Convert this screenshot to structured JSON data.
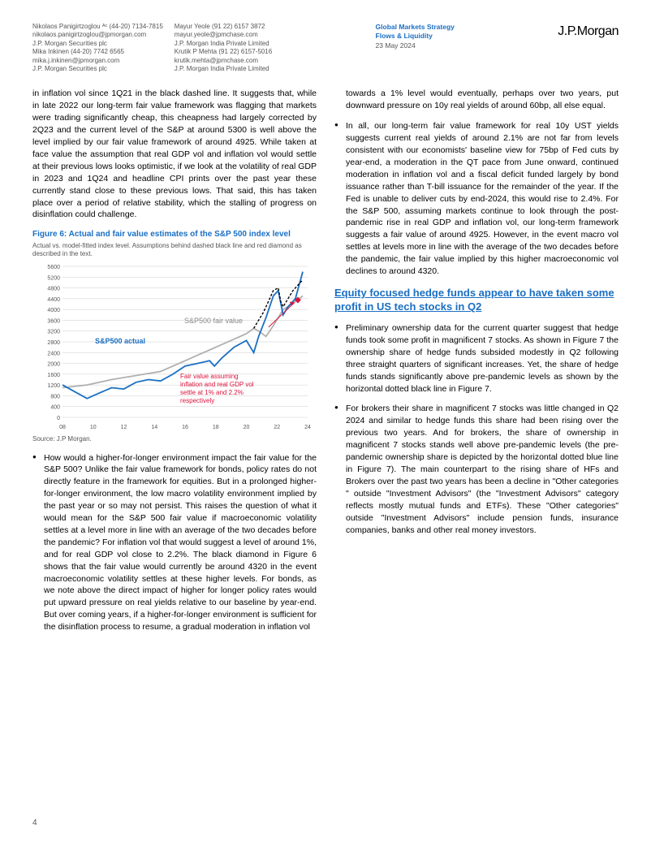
{
  "header": {
    "authors_col1": [
      "Nikolaos Panigirtzoglou ᴬᶜ (44-20) 7134-7815",
      "nikolaos.panigirtzoglou@jpmorgan.com",
      "J.P. Morgan Securities plc",
      "Mika Inkinen  (44-20) 7742 6565",
      "mika.j.inkinen@jpmorgan.com",
      "J.P. Morgan Securities plc"
    ],
    "authors_col2": [
      "Mayur Yeole  (91 22) 6157 3872",
      "mayur.yeole@jpmchase.com",
      "J.P. Morgan India Private Limited",
      "Krutik P Mehta  (91 22) 6157-5016",
      "krutik.mehta@jpmchase.com",
      "J.P. Morgan India Private Limited"
    ],
    "meta": {
      "line1": "Global Markets Strategy",
      "line2": "Flows & Liquidity",
      "line3": "23 May 2024"
    },
    "logo": "J.P.Morgan"
  },
  "left": {
    "para1": "in inflation vol since 1Q21 in the black dashed line. It suggests that, while in late 2022 our long-term fair value framework was flagging that markets were trading significantly cheap, this cheapness had largely corrected by 2Q23 and the current level of the S&P at around 5300 is well above the level implied by our fair value framework of around 4925. While taken at face value the assumption that real GDP vol and inflation vol would settle at their previous lows looks optimistic, if we look at the volatility of real GDP in 2023 and 1Q24 and headline CPI prints over the past year these currently stand close to these previous lows. That said, this has taken place over a period of relative stability, which the stalling of progress on disinflation could challenge.",
    "fig_title": "Figure 6: Actual and fair value estimates of the S&P 500 index level",
    "fig_sub": "Actual vs. model-fitted index level. Assumptions behind dashed black line and red diamond as described in the text.",
    "fig_src": "Source: J.P Morgan.",
    "bullet1": "How would a higher-for-longer environment impact the fair value for the S&P 500? Unlike the fair value framework for bonds, policy rates do not directly feature in the framework for equities. But in a prolonged higher-for-longer environment, the low macro volatility environment implied by the past year or so may not persist. This raises the question of what it would mean for the S&P 500 fair value if macroeconomic volatility settles at a level more in line with an average of the two decades before the pandemic? For inflation vol that would suggest a level of around 1%, and for real GDP vol close to 2.2%. The black diamond in Figure 6 shows that the fair value would currently be around 4320 in the event macroeconomic volatility settles at these higher levels. For bonds, as we note above the direct impact of higher for longer policy rates would put upward pressure on real yields relative to our baseline by year-end. But over coming years, if a higher-for-longer environment is sufficient for the disinflation process to resume, a gradual moderation in inflation vol"
  },
  "right": {
    "para1": "towards a 1% level would eventually, perhaps over two years, put downward pressure on 10y real yields of around 60bp, all else equal.",
    "bullet1": "In all, our long-term fair value framework for real 10y UST yields suggests current real yields of around 2.1% are not far from levels consistent with our economists' baseline view for 75bp of Fed cuts by year-end, a moderation in the QT pace from June onward, continued moderation in inflation vol and a fiscal deficit funded largely by bond issuance rather than T-bill issuance for the remainder of the year. If the Fed is unable to deliver cuts by end-2024, this would rise to 2.4%. For the S&P 500, assuming markets continue to look through the post-pandemic rise in real GDP and inflation vol, our long-term framework suggests a fair value of around 4925. However, in the event macro vol settles at levels more in line with the average of the two decades before the pandemic, the fair value implied by this higher macroeconomic vol declines to around 4320.",
    "section_heading": "Equity focused hedge funds appear to have taken some profit in US tech stocks in Q2",
    "bullet2": "Preliminary ownership data for the current quarter suggest that hedge funds took some profit in magnificent 7 stocks. As shown in Figure 7 the ownership share of hedge funds subsided modestly in Q2 following three straight quarters of significant increases. Yet, the share of hedge funds stands significantly above pre-pandemic levels as shown by the horizontal dotted black line in Figure 7.",
    "bullet3": "For brokers their share in magnificent 7 stocks was little changed in Q2 2024 and similar to hedge funds this share had been rising over the previous two years. And for brokers, the share of ownership in magnificent 7 stocks stands well above pre-pandemic levels (the pre-pandemic ownership share is depicted by the horizontal dotted blue line in Figure 7). The main counterpart to the rising share of HFs and Brokers over the past two years has been a decline in \"Other categories \" outside \"Investment Advisors\" (the \"Investment Advisors\" category reflects mostly mutual funds and ETFs). These \"Other categories\" outside \"Investment Advisors\" include pension funds, insurance companies, banks and other real money investors."
  },
  "chart": {
    "type": "line",
    "y_ticks": [
      0,
      400,
      800,
      1200,
      1600,
      2000,
      2400,
      2800,
      3200,
      3600,
      4000,
      4400,
      4800,
      5200,
      5600
    ],
    "x_ticks": [
      "08",
      "10",
      "12",
      "14",
      "16",
      "18",
      "20",
      "22",
      "24"
    ],
    "series_actual_label": "S&P500 actual",
    "series_fair_label": "S&P500 fair value",
    "annotation": "Fair value assuming inflation and real GDP vol settle at 1% and 2.2% respectively",
    "colors": {
      "actual": "#1a6fc4",
      "fair": "#b0b0b0",
      "dashed": "#000000",
      "diamond": "#dc143c",
      "grid": "#cccccc",
      "bg": "#ffffff"
    },
    "actual_points": [
      [
        0,
        1200
      ],
      [
        5,
        950
      ],
      [
        10,
        700
      ],
      [
        15,
        900
      ],
      [
        20,
        1100
      ],
      [
        25,
        1050
      ],
      [
        30,
        1300
      ],
      [
        35,
        1400
      ],
      [
        40,
        1350
      ],
      [
        45,
        1600
      ],
      [
        50,
        1900
      ],
      [
        55,
        2000
      ],
      [
        60,
        2100
      ],
      [
        62,
        1900
      ],
      [
        65,
        2200
      ],
      [
        70,
        2600
      ],
      [
        75,
        2850
      ],
      [
        78,
        2400
      ],
      [
        80,
        3000
      ],
      [
        83,
        3700
      ],
      [
        86,
        4500
      ],
      [
        88,
        4700
      ],
      [
        90,
        3800
      ],
      [
        92,
        4100
      ],
      [
        95,
        4400
      ],
      [
        98,
        5400
      ]
    ],
    "fair_points": [
      [
        0,
        1100
      ],
      [
        10,
        1200
      ],
      [
        20,
        1400
      ],
      [
        30,
        1550
      ],
      [
        40,
        1700
      ],
      [
        50,
        2100
      ],
      [
        55,
        2300
      ],
      [
        60,
        2500
      ],
      [
        65,
        2700
      ],
      [
        70,
        2900
      ],
      [
        75,
        3100
      ],
      [
        78,
        3300
      ],
      [
        80,
        3200
      ],
      [
        83,
        3000
      ],
      [
        86,
        3400
      ],
      [
        88,
        3700
      ],
      [
        90,
        4000
      ],
      [
        92,
        4100
      ],
      [
        95,
        4300
      ],
      [
        98,
        4500
      ]
    ],
    "dashed_points": [
      [
        78,
        3300
      ],
      [
        80,
        3600
      ],
      [
        82,
        3900
      ],
      [
        84,
        4300
      ],
      [
        86,
        4700
      ],
      [
        88,
        4800
      ],
      [
        89,
        4300
      ],
      [
        90,
        4100
      ],
      [
        92,
        4400
      ],
      [
        94,
        4700
      ],
      [
        96,
        4900
      ],
      [
        98,
        5100
      ]
    ],
    "diamond": [
      96,
      4350
    ],
    "ylim": [
      0,
      5600
    ]
  },
  "page_number": "4"
}
